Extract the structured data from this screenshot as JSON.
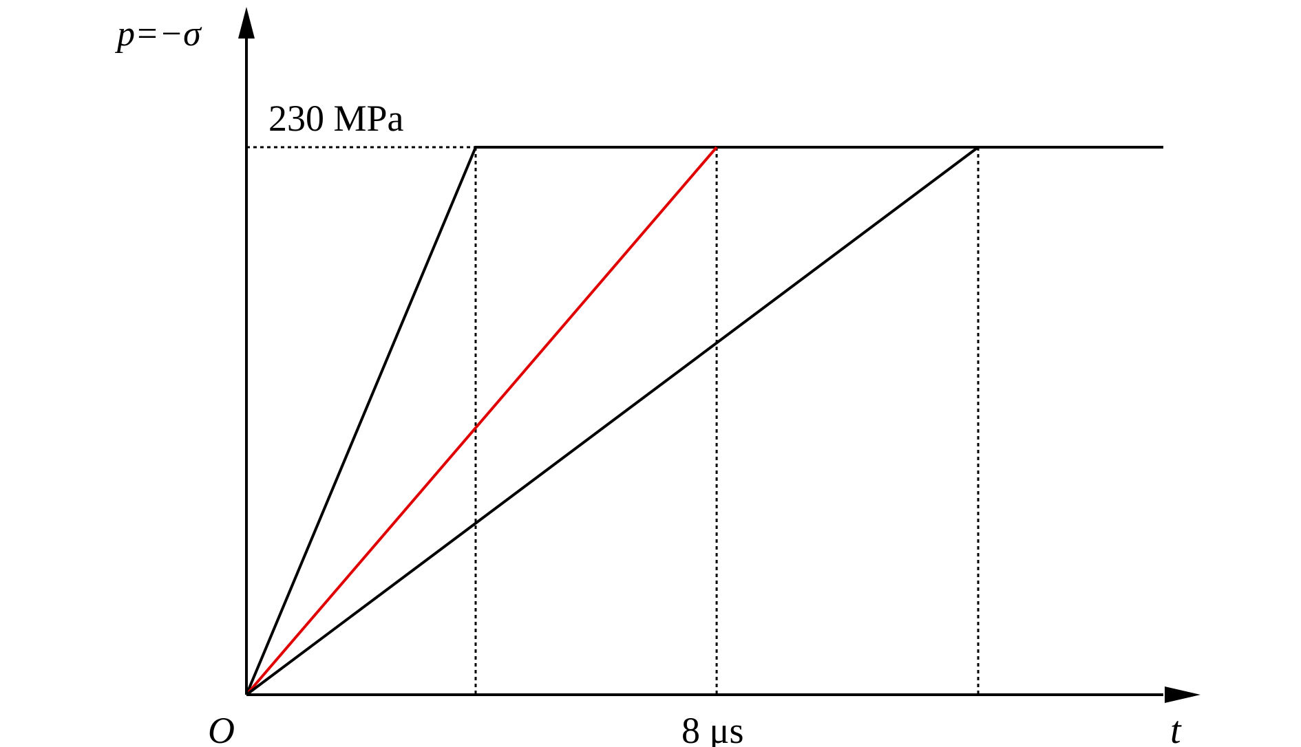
{
  "chart_data": {
    "type": "line",
    "ylabel": "p=−σ",
    "xlabel": "t",
    "origin_label": "O",
    "y_annotation": "230 MPa",
    "x_annotation": "8 μs",
    "plateau_value": 230,
    "xlim": [
      0,
      15.6
    ],
    "ylim": [
      0,
      280
    ],
    "series": [
      {
        "color": "#000000",
        "x": [
          0,
          3.9,
          15.6
        ],
        "y": [
          0,
          230,
          230
        ]
      },
      {
        "color": "#e00000",
        "x": [
          0,
          8
        ],
        "y": [
          0,
          230
        ]
      },
      {
        "color": "#000000",
        "x": [
          0,
          12.45
        ],
        "y": [
          0,
          230
        ]
      }
    ],
    "reference_lines_x": [
      3.9,
      8,
      12.45
    ]
  }
}
